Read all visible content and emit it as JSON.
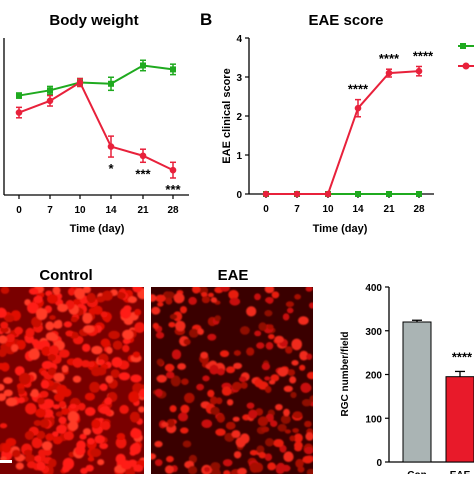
{
  "chart_data": [
    {
      "type": "line",
      "title": "Body weight",
      "xlabel": "Time (day)",
      "ylabel": "",
      "x": [
        0,
        7,
        10,
        14,
        21,
        28
      ],
      "xtick_labels": [
        "0",
        "7",
        "10",
        "14",
        "21",
        "28"
      ],
      "series": [
        {
          "name": "",
          "color": "#1faa1f",
          "values": [
            0.76,
            0.8,
            0.86,
            0.85,
            0.99,
            0.96
          ],
          "errors": [
            0.02,
            0.03,
            0.03,
            0.05,
            0.04,
            0.04
          ]
        },
        {
          "name": "",
          "color": "#e8213b",
          "values": [
            0.63,
            0.72,
            0.86,
            0.37,
            0.3,
            0.19
          ],
          "errors": [
            0.04,
            0.04,
            0.03,
            0.08,
            0.05,
            0.06
          ]
        }
      ],
      "annotations": [
        {
          "x": 14,
          "text": "*"
        },
        {
          "x": 21,
          "text": "***"
        },
        {
          "x": 28,
          "text": "***"
        }
      ],
      "ylim": [
        0,
        1.2
      ],
      "grid": false
    },
    {
      "type": "line",
      "panel_label": "B",
      "title": "EAE score",
      "xlabel": "Time (day)",
      "ylabel": "EAE clinical score",
      "x": [
        0,
        7,
        10,
        14,
        21,
        28
      ],
      "xtick_labels": [
        "0",
        "7",
        "10",
        "14",
        "21",
        "28"
      ],
      "yticks": [
        0,
        1,
        2,
        3,
        4
      ],
      "series": [
        {
          "name": "",
          "color": "#1faa1f",
          "values": [
            0,
            0,
            0,
            0,
            0,
            0
          ],
          "errors": [
            0,
            0,
            0,
            0,
            0,
            0
          ]
        },
        {
          "name": "",
          "color": "#e8213b",
          "values": [
            0,
            0,
            0,
            2.2,
            3.1,
            3.15
          ],
          "errors": [
            0,
            0,
            0,
            0.22,
            0.1,
            0.12
          ]
        }
      ],
      "annotations": [
        {
          "x": 14,
          "text": "****"
        },
        {
          "x": 21,
          "text": "****"
        },
        {
          "x": 28,
          "text": "****"
        }
      ],
      "ylim": [
        0,
        4
      ],
      "grid": false
    },
    {
      "type": "bar",
      "ylabel": "RGC number/field",
      "categories": [
        "Con",
        "EAE"
      ],
      "values": [
        320,
        195
      ],
      "errors": [
        4,
        12
      ],
      "colors": [
        "#aab4b4",
        "#e81a2a"
      ],
      "yticks": [
        0,
        100,
        200,
        300,
        400
      ],
      "annotations": [
        {
          "category": "EAE",
          "text": "****"
        }
      ],
      "ylim": [
        0,
        400
      ],
      "grid": false
    }
  ],
  "micrographs": [
    {
      "label": "Control",
      "color": "#e01010"
    },
    {
      "label": "EAE",
      "color": "#d01010"
    }
  ]
}
